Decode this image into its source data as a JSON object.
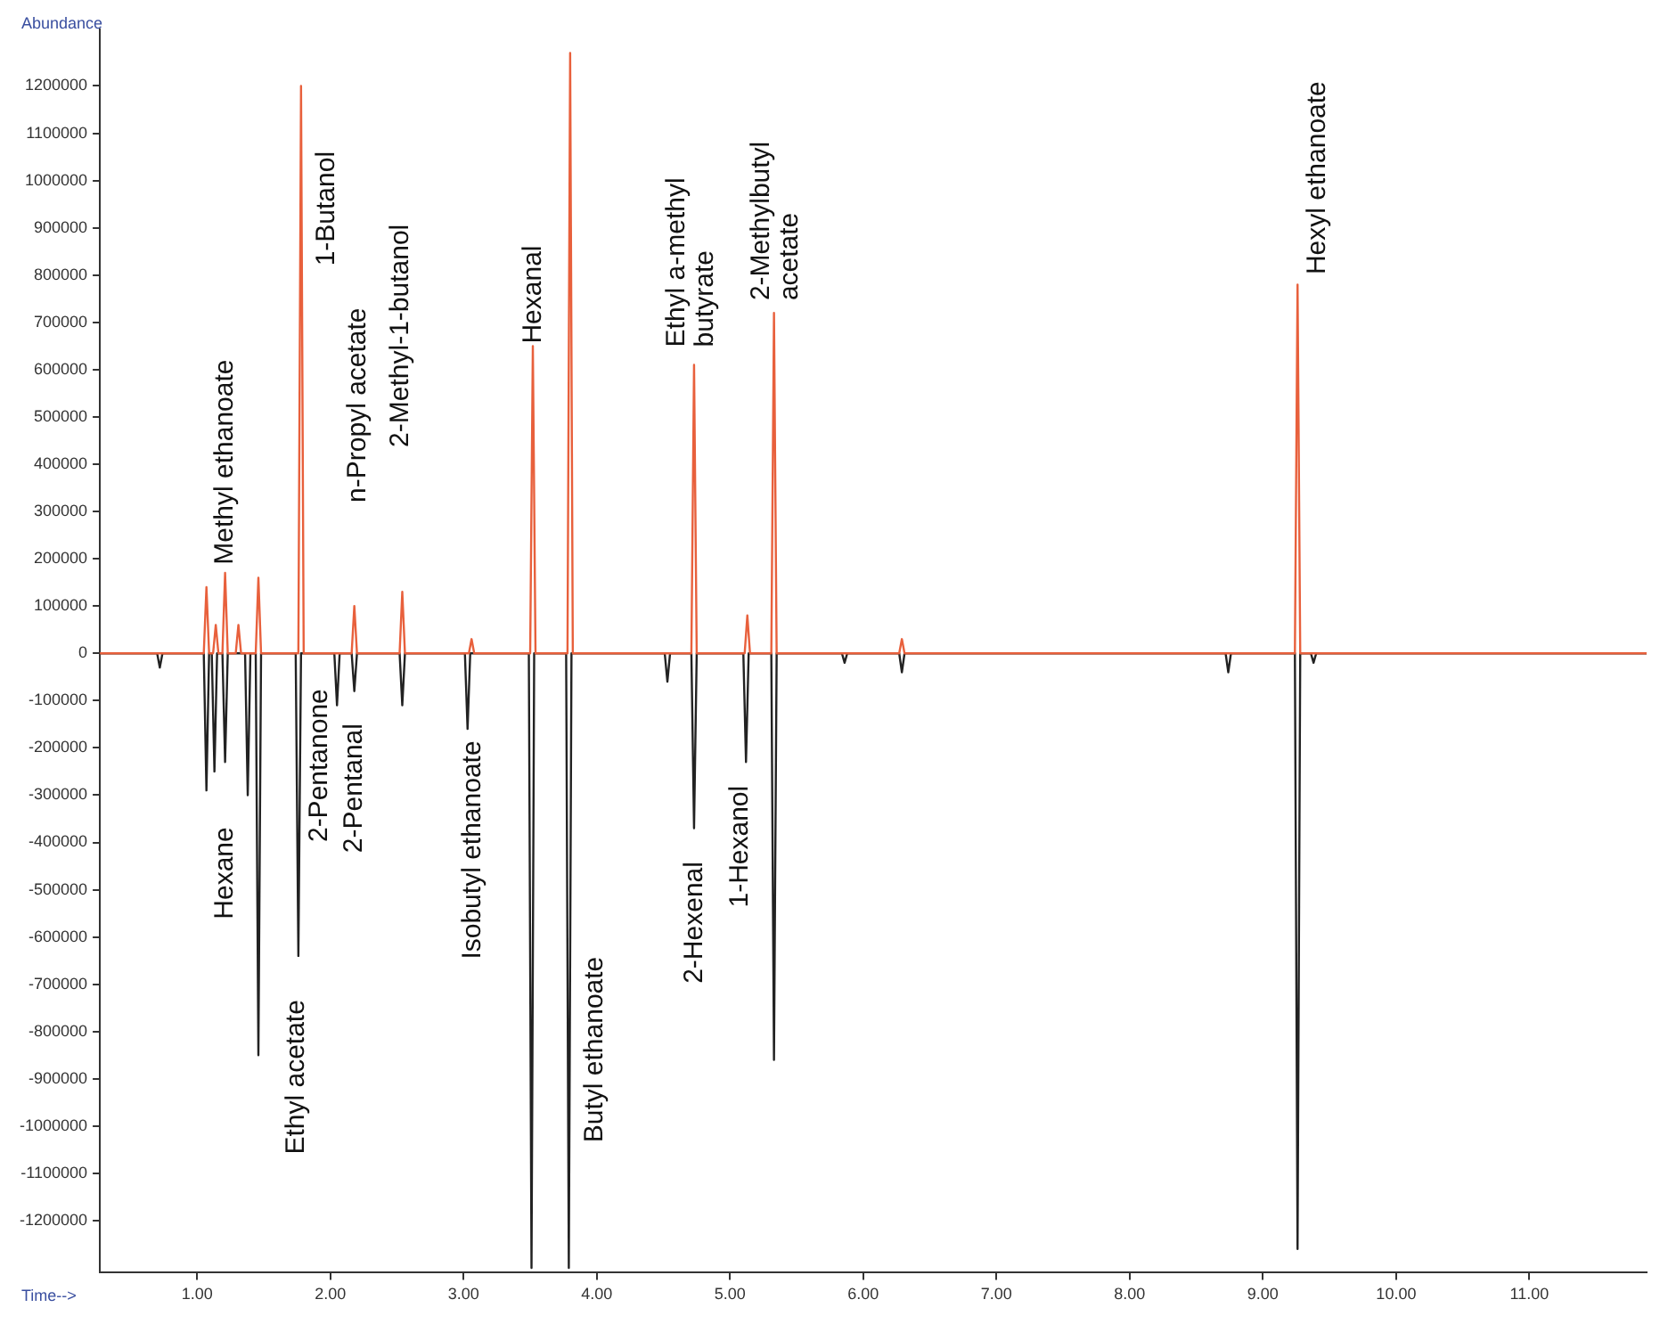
{
  "chart_data": {
    "type": "line",
    "xlabel": "Time-->",
    "ylabel": "Abundance",
    "marker": "none",
    "xlim": [
      0.27,
      11.88
    ],
    "ylim": [
      -1310000,
      1320000
    ],
    "xticks": [
      {
        "value": 1,
        "label": "1.00"
      },
      {
        "value": 2,
        "label": "2.00"
      },
      {
        "value": 3,
        "label": "3.00"
      },
      {
        "value": 4,
        "label": "4.00"
      },
      {
        "value": 5,
        "label": "5.00"
      },
      {
        "value": 6,
        "label": "6.00"
      },
      {
        "value": 7,
        "label": "7.00"
      },
      {
        "value": 8,
        "label": "8.00"
      },
      {
        "value": 9,
        "label": "9.00"
      },
      {
        "value": 10,
        "label": "10.00"
      },
      {
        "value": 11,
        "label": "11.00"
      }
    ],
    "yticks": [
      -1200000,
      -1100000,
      -1000000,
      -900000,
      -800000,
      -700000,
      -600000,
      -500000,
      -400000,
      -300000,
      -200000,
      -100000,
      0,
      100000,
      200000,
      300000,
      400000,
      500000,
      600000,
      700000,
      800000,
      900000,
      1000000,
      1100000,
      1200000
    ],
    "series": [
      {
        "color": "#e8603c",
        "x": [
          0.27,
          1.05,
          1.07,
          1.09,
          1.12,
          1.14,
          1.16,
          1.19,
          1.21,
          1.23,
          1.29,
          1.31,
          1.33,
          1.44,
          1.46,
          1.48,
          1.76,
          1.78,
          1.8,
          2.16,
          2.18,
          2.2,
          2.52,
          2.54,
          2.56,
          3.04,
          3.06,
          3.08,
          3.5,
          3.52,
          3.54,
          3.78,
          3.8,
          3.82,
          4.71,
          4.73,
          4.75,
          5.11,
          5.13,
          5.15,
          5.31,
          5.33,
          5.35,
          6.27,
          6.29,
          6.31,
          9.24,
          9.26,
          9.28,
          11.88
        ],
        "values": [
          0,
          0,
          140000,
          0,
          0,
          60000,
          0,
          0,
          170000,
          0,
          0,
          60000,
          0,
          0,
          160000,
          0,
          0,
          1200000,
          0,
          0,
          100000,
          0,
          0,
          130000,
          0,
          0,
          30000,
          0,
          0,
          650000,
          0,
          0,
          1270000,
          0,
          0,
          610000,
          0,
          0,
          80000,
          0,
          0,
          720000,
          0,
          0,
          30000,
          0,
          0,
          780000,
          0,
          0
        ]
      },
      {
        "color": "#222222",
        "x": [
          0.27,
          0.7,
          0.72,
          0.74,
          1.05,
          1.07,
          1.09,
          1.11,
          1.13,
          1.15,
          1.19,
          1.21,
          1.23,
          1.36,
          1.38,
          1.4,
          1.44,
          1.46,
          1.48,
          1.74,
          1.76,
          1.78,
          2.03,
          2.05,
          2.07,
          2.16,
          2.18,
          2.2,
          2.52,
          2.54,
          2.56,
          3.01,
          3.03,
          3.05,
          3.49,
          3.51,
          3.53,
          3.77,
          3.79,
          3.81,
          4.51,
          4.53,
          4.55,
          4.71,
          4.73,
          4.75,
          5.1,
          5.12,
          5.14,
          5.31,
          5.33,
          5.35,
          5.84,
          5.86,
          5.88,
          6.27,
          6.29,
          6.31,
          8.72,
          8.74,
          8.76,
          9.24,
          9.26,
          9.28,
          9.36,
          9.38,
          9.4,
          11.88
        ],
        "values": [
          0,
          0,
          -30000,
          0,
          0,
          -290000,
          0,
          0,
          -250000,
          0,
          0,
          -230000,
          0,
          0,
          -300000,
          0,
          0,
          -850000,
          0,
          0,
          -640000,
          0,
          0,
          -110000,
          0,
          0,
          -80000,
          0,
          0,
          -110000,
          0,
          0,
          -160000,
          0,
          0,
          -1300000,
          0,
          0,
          -1300000,
          0,
          0,
          -60000,
          0,
          0,
          -370000,
          0,
          0,
          -230000,
          0,
          0,
          -860000,
          0,
          0,
          -20000,
          0,
          0,
          -40000,
          0,
          0,
          -40000,
          0,
          0,
          -1260000,
          0,
          0,
          -20000,
          0,
          0
        ]
      }
    ],
    "annotations": [
      "Methyl ethanoate",
      "1-Butanol",
      "n-Propyl acetate",
      "2-Methyl-1-butanol",
      "Hexanal",
      "Ethyl a-methyl\nbutyrate",
      "2-Methylbutyl\nacetate",
      "Hexyl ethanoate",
      "Hexane",
      "Ethyl acetate",
      "2-Pentanone",
      "2-Pentanal",
      "Isobutyl ethanoate",
      "Butyl ethanoate",
      "2-Hexenal",
      "1-Hexanol"
    ]
  }
}
